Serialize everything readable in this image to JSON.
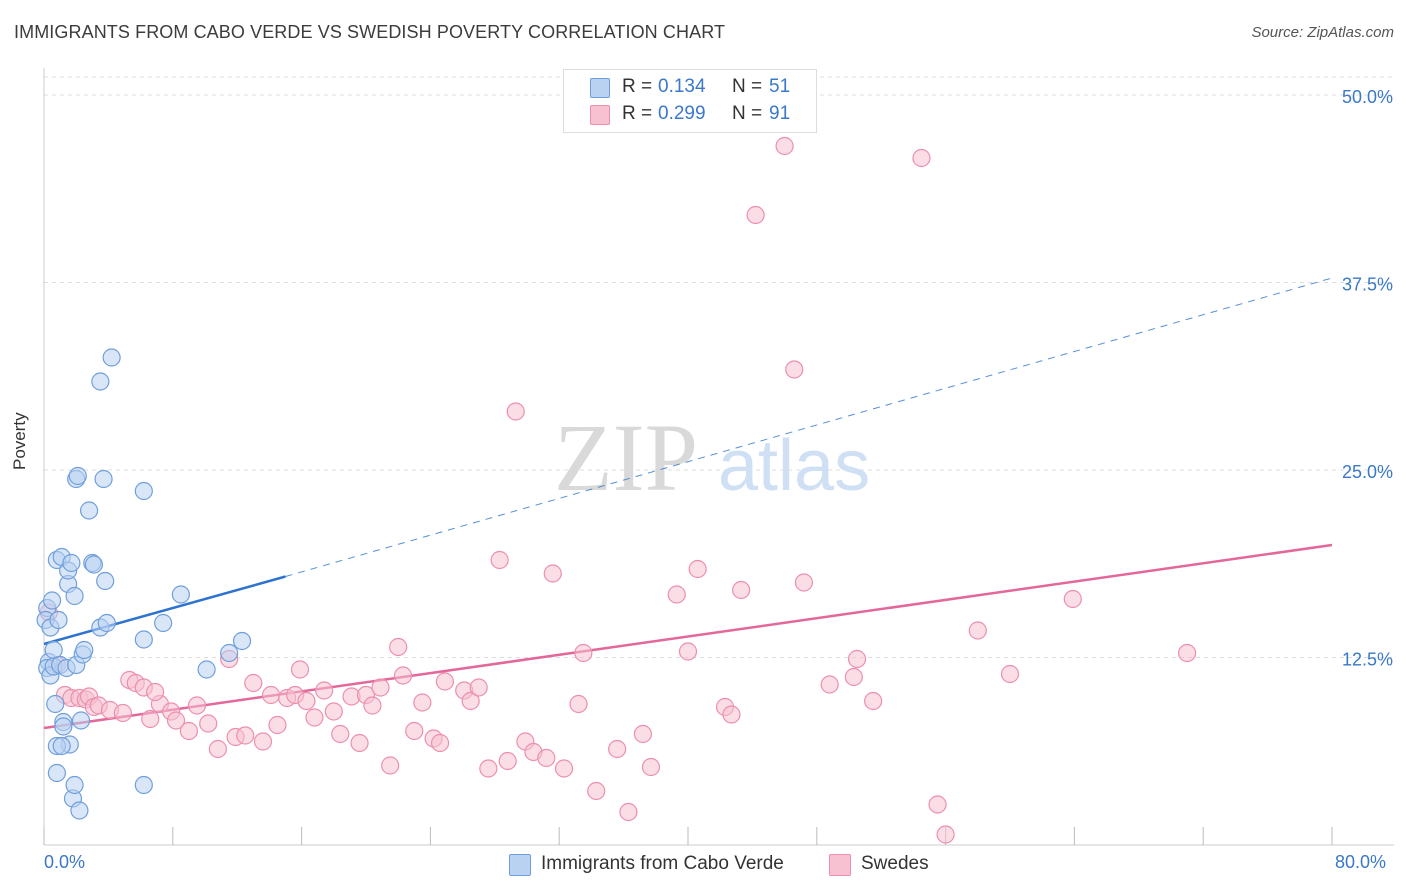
{
  "header": {
    "title": "IMMIGRANTS FROM CABO VERDE VS SWEDISH POVERTY CORRELATION CHART",
    "source": "Source: ZipAtlas.com"
  },
  "watermark": {
    "zip": "ZIP",
    "atlas": "atlas"
  },
  "legend_top": [
    {
      "r_label": "R =",
      "r_value": "0.134",
      "n_label": "N =",
      "n_value": "51"
    },
    {
      "r_label": "R =",
      "r_value": "0.299",
      "n_label": "N =",
      "n_value": "91"
    }
  ],
  "legend_bottom": [
    {
      "label": "Immigrants from Cabo Verde"
    },
    {
      "label": "Swedes"
    }
  ],
  "colors": {
    "blue_fill": "#b9d2f2",
    "blue_stroke": "#6f9fdb",
    "blue_line": "#2e73d0",
    "pink_fill": "#f7c1d2",
    "pink_stroke": "#ec8fae",
    "pink_line": "#e3679a",
    "grid": "#dcdcdc",
    "tick_text": "#3a78c9"
  },
  "chart_data": {
    "type": "scatter",
    "title": "IMMIGRANTS FROM CABO VERDE VS SWEDISH POVERTY CORRELATION CHART",
    "xlabel": "",
    "ylabel": "Poverty",
    "xlim": [
      0,
      80
    ],
    "ylim": [
      0,
      50
    ],
    "x_tick_labels": [
      "0.0%",
      "80.0%"
    ],
    "y_ticks": [
      12.5,
      25.0,
      37.5,
      50.0
    ],
    "y_tick_labels": [
      "12.5%",
      "25.0%",
      "37.5%",
      "50.0%"
    ],
    "grid": true,
    "legend_position": "top-center",
    "series": [
      {
        "name": "Immigrants from Cabo Verde",
        "color": "blue",
        "R": 0.134,
        "N": 51,
        "trend": {
          "x": [
            0,
            15
          ],
          "y": [
            13.4,
            17.9
          ]
        },
        "trend_extended": {
          "x": [
            15,
            80
          ],
          "y": [
            17.9,
            37.8
          ]
        },
        "points": [
          [
            0.2,
            15.8
          ],
          [
            0.3,
            12.2
          ],
          [
            0.2,
            11.8
          ],
          [
            0.4,
            11.3
          ],
          [
            0.1,
            15.0
          ],
          [
            0.4,
            14.5
          ],
          [
            0.5,
            16.3
          ],
          [
            0.6,
            13.0
          ],
          [
            0.6,
            11.9
          ],
          [
            0.7,
            9.4
          ],
          [
            0.8,
            19.0
          ],
          [
            0.9,
            15.0
          ],
          [
            1.0,
            12.0
          ],
          [
            1.1,
            19.2
          ],
          [
            1.2,
            8.2
          ],
          [
            1.2,
            7.9
          ],
          [
            1.4,
            11.8
          ],
          [
            1.5,
            17.4
          ],
          [
            1.5,
            18.3
          ],
          [
            1.6,
            6.7
          ],
          [
            1.7,
            18.8
          ],
          [
            1.8,
            3.1
          ],
          [
            1.9,
            4.0
          ],
          [
            1.9,
            16.6
          ],
          [
            2.0,
            12.0
          ],
          [
            2.0,
            24.4
          ],
          [
            2.1,
            24.6
          ],
          [
            2.2,
            2.3
          ],
          [
            2.3,
            8.3
          ],
          [
            2.4,
            12.7
          ],
          [
            2.5,
            13.0
          ],
          [
            2.8,
            22.3
          ],
          [
            3.0,
            18.8
          ],
          [
            3.1,
            18.7
          ],
          [
            3.5,
            14.5
          ],
          [
            3.5,
            30.9
          ],
          [
            3.7,
            24.4
          ],
          [
            3.8,
            17.6
          ],
          [
            3.9,
            14.8
          ],
          [
            4.2,
            32.5
          ],
          [
            6.2,
            4.0
          ],
          [
            6.2,
            13.7
          ],
          [
            6.2,
            23.6
          ],
          [
            0.8,
            6.6
          ],
          [
            0.8,
            4.8
          ],
          [
            7.4,
            14.8
          ],
          [
            8.5,
            16.7
          ],
          [
            10.1,
            11.7
          ],
          [
            11.5,
            12.8
          ],
          [
            12.3,
            13.6
          ],
          [
            1.1,
            6.6
          ]
        ]
      },
      {
        "name": "Swedes",
        "color": "pink",
        "R": 0.299,
        "N": 91,
        "trend": {
          "x": [
            0,
            80
          ],
          "y": [
            7.8,
            20.0
          ]
        },
        "points": [
          [
            0.3,
            15.5
          ],
          [
            0.8,
            12.0
          ],
          [
            1.3,
            10.0
          ],
          [
            1.7,
            9.8
          ],
          [
            2.2,
            9.8
          ],
          [
            2.6,
            9.7
          ],
          [
            2.8,
            9.9
          ],
          [
            3.1,
            9.2
          ],
          [
            3.4,
            9.3
          ],
          [
            4.1,
            9.0
          ],
          [
            4.9,
            8.8
          ],
          [
            5.3,
            11.0
          ],
          [
            5.7,
            10.8
          ],
          [
            6.2,
            10.5
          ],
          [
            6.6,
            8.4
          ],
          [
            7.2,
            9.4
          ],
          [
            7.9,
            8.9
          ],
          [
            8.2,
            8.3
          ],
          [
            9.0,
            7.6
          ],
          [
            9.5,
            9.3
          ],
          [
            10.2,
            8.1
          ],
          [
            10.8,
            6.4
          ],
          [
            11.5,
            12.4
          ],
          [
            11.9,
            7.2
          ],
          [
            12.5,
            7.3
          ],
          [
            13.0,
            10.8
          ],
          [
            13.6,
            6.9
          ],
          [
            14.1,
            10.0
          ],
          [
            14.5,
            8.0
          ],
          [
            15.1,
            9.8
          ],
          [
            15.6,
            10.0
          ],
          [
            15.9,
            11.7
          ],
          [
            16.3,
            9.6
          ],
          [
            16.8,
            8.5
          ],
          [
            17.4,
            10.3
          ],
          [
            18.0,
            8.9
          ],
          [
            18.4,
            7.4
          ],
          [
            19.1,
            9.9
          ],
          [
            19.6,
            6.8
          ],
          [
            20.0,
            10.0
          ],
          [
            20.4,
            9.3
          ],
          [
            20.9,
            10.5
          ],
          [
            21.5,
            5.3
          ],
          [
            22.0,
            13.2
          ],
          [
            22.3,
            11.3
          ],
          [
            23.0,
            7.6
          ],
          [
            23.5,
            9.5
          ],
          [
            24.2,
            7.1
          ],
          [
            24.6,
            6.8
          ],
          [
            24.9,
            10.9
          ],
          [
            26.1,
            10.3
          ],
          [
            26.5,
            9.6
          ],
          [
            27.0,
            10.5
          ],
          [
            27.6,
            5.1
          ],
          [
            28.3,
            19.0
          ],
          [
            28.8,
            5.6
          ],
          [
            29.3,
            28.9
          ],
          [
            29.9,
            6.9
          ],
          [
            30.4,
            6.2
          ],
          [
            31.2,
            5.8
          ],
          [
            31.6,
            18.1
          ],
          [
            32.3,
            5.1
          ],
          [
            33.2,
            9.4
          ],
          [
            33.5,
            12.8
          ],
          [
            34.3,
            3.6
          ],
          [
            35.6,
            6.4
          ],
          [
            36.3,
            2.2
          ],
          [
            37.2,
            7.4
          ],
          [
            37.7,
            5.2
          ],
          [
            39.3,
            16.7
          ],
          [
            40.0,
            12.9
          ],
          [
            40.6,
            18.4
          ],
          [
            42.3,
            9.2
          ],
          [
            42.7,
            8.7
          ],
          [
            43.3,
            17.0
          ],
          [
            44.2,
            42.0
          ],
          [
            46.0,
            46.6
          ],
          [
            46.6,
            31.7
          ],
          [
            47.2,
            17.5
          ],
          [
            48.8,
            10.7
          ],
          [
            50.3,
            11.2
          ],
          [
            50.5,
            12.4
          ],
          [
            51.5,
            9.6
          ],
          [
            54.5,
            45.8
          ],
          [
            55.5,
            2.7
          ],
          [
            56.0,
            0.7
          ],
          [
            58.0,
            14.3
          ],
          [
            60.0,
            11.4
          ],
          [
            63.9,
            16.4
          ],
          [
            71.0,
            12.8
          ],
          [
            6.9,
            10.2
          ]
        ]
      }
    ]
  }
}
